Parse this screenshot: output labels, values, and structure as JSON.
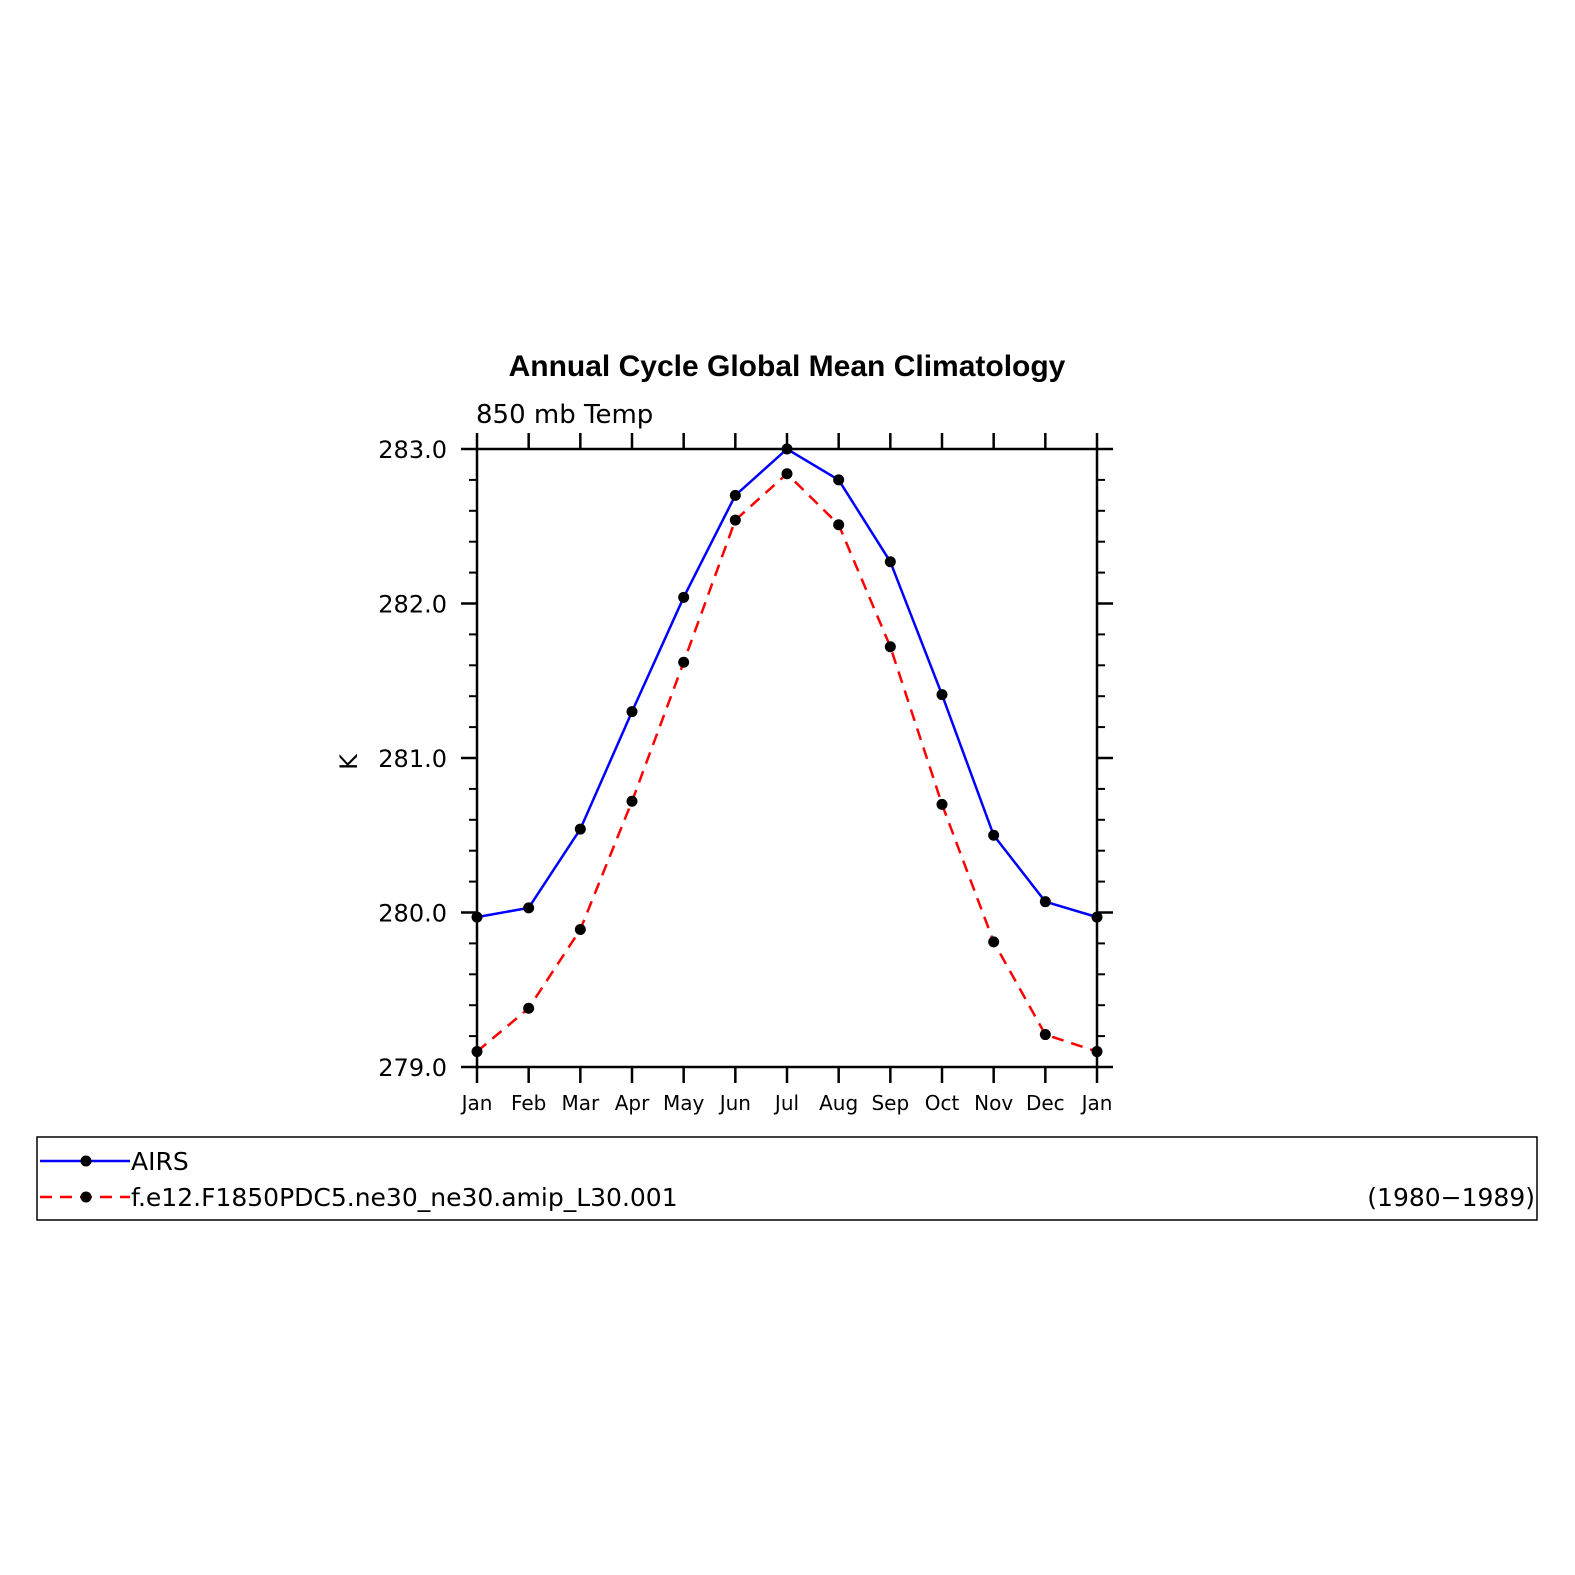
{
  "chart_data": {
    "type": "line",
    "title": "Annual Cycle Global Mean Climatology",
    "subtitle": "850 mb Temp",
    "ylabel": "K",
    "xlabel": "",
    "categories": [
      "Jan",
      "Feb",
      "Mar",
      "Apr",
      "May",
      "Jun",
      "Jul",
      "Aug",
      "Sep",
      "Oct",
      "Nov",
      "Dec",
      "Jan"
    ],
    "ylim": [
      279.0,
      283.0
    ],
    "yticks": [
      "279.0",
      "280.0",
      "281.0",
      "282.0",
      "283.0"
    ],
    "series": [
      {
        "name": "AIRS",
        "color": "#0000ff",
        "style": "solid",
        "values": [
          279.97,
          280.03,
          280.54,
          281.3,
          282.04,
          282.7,
          283.0,
          282.8,
          282.27,
          281.41,
          280.5,
          280.07,
          279.97
        ]
      },
      {
        "name": "f.e12.F1850PDC5.ne30_ne30.amip_L30.001",
        "color": "#ff0000",
        "style": "dashed",
        "values": [
          279.1,
          279.38,
          279.89,
          280.72,
          281.62,
          282.54,
          282.84,
          282.51,
          281.72,
          280.7,
          279.81,
          279.21,
          279.1
        ]
      }
    ],
    "legend": {
      "placement": "bottom",
      "note": "(1980−1989)"
    }
  }
}
